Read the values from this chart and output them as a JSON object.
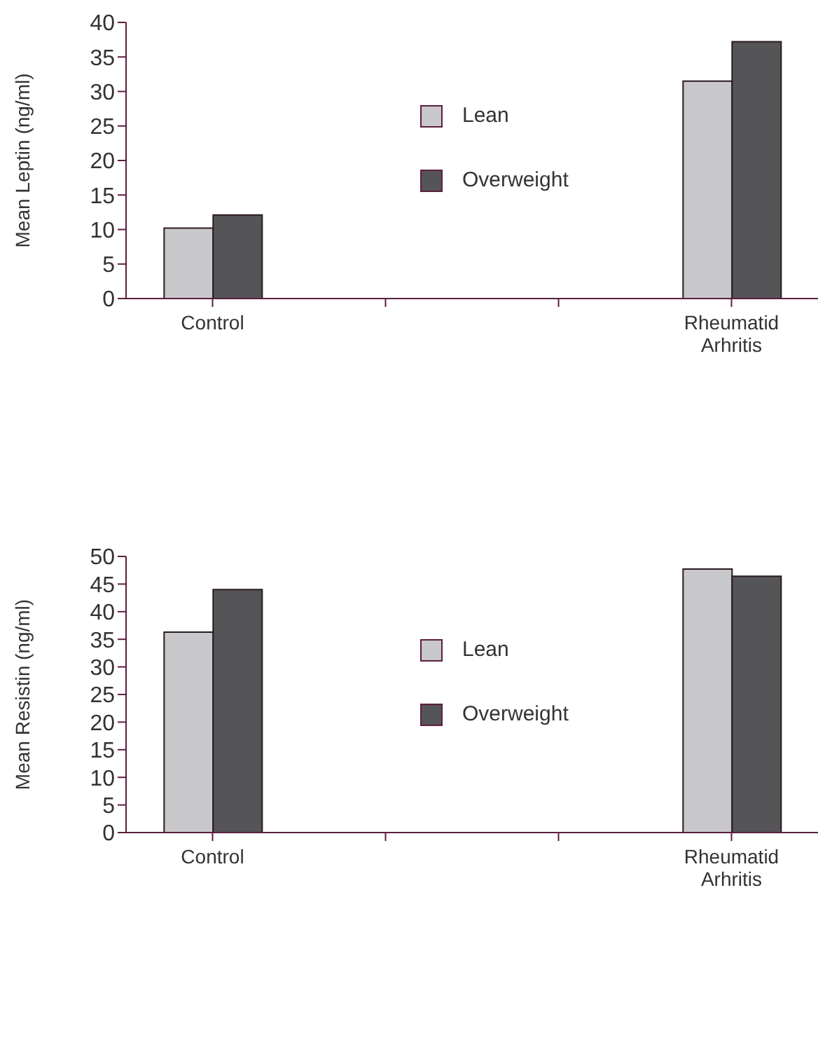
{
  "chart_data": [
    {
      "type": "bar",
      "ylabel": "Mean Leptin (ng/ml)",
      "categories": [
        "Control",
        null,
        null,
        "Rheumatid Arhritis"
      ],
      "series": [
        {
          "name": "Lean",
          "color": "#c8c8ca",
          "values": [
            10.2,
            null,
            null,
            31.5
          ]
        },
        {
          "name": "Overweight",
          "color": "#555557",
          "values": [
            12.1,
            null,
            null,
            37.2
          ]
        }
      ],
      "ylim": [
        0,
        40
      ],
      "yticks": [
        0,
        5,
        10,
        15,
        20,
        25,
        30,
        35,
        40
      ],
      "grid": false,
      "legend": "top"
    },
    {
      "type": "bar",
      "ylabel": "Mean Resistin (ng/ml)",
      "categories": [
        "Control",
        null,
        null,
        "Rheumatid Arhritis"
      ],
      "series": [
        {
          "name": "Lean",
          "color": "#c8c8ca",
          "values": [
            36.3,
            null,
            null,
            47.7
          ]
        },
        {
          "name": "Overweight",
          "color": "#555557",
          "values": [
            44,
            null,
            null,
            46.4
          ]
        }
      ],
      "ylim": [
        0,
        50
      ],
      "yticks": [
        0,
        5,
        10,
        15,
        20,
        25,
        30,
        35,
        40,
        45,
        50
      ],
      "grid": false,
      "legend": "top"
    }
  ]
}
